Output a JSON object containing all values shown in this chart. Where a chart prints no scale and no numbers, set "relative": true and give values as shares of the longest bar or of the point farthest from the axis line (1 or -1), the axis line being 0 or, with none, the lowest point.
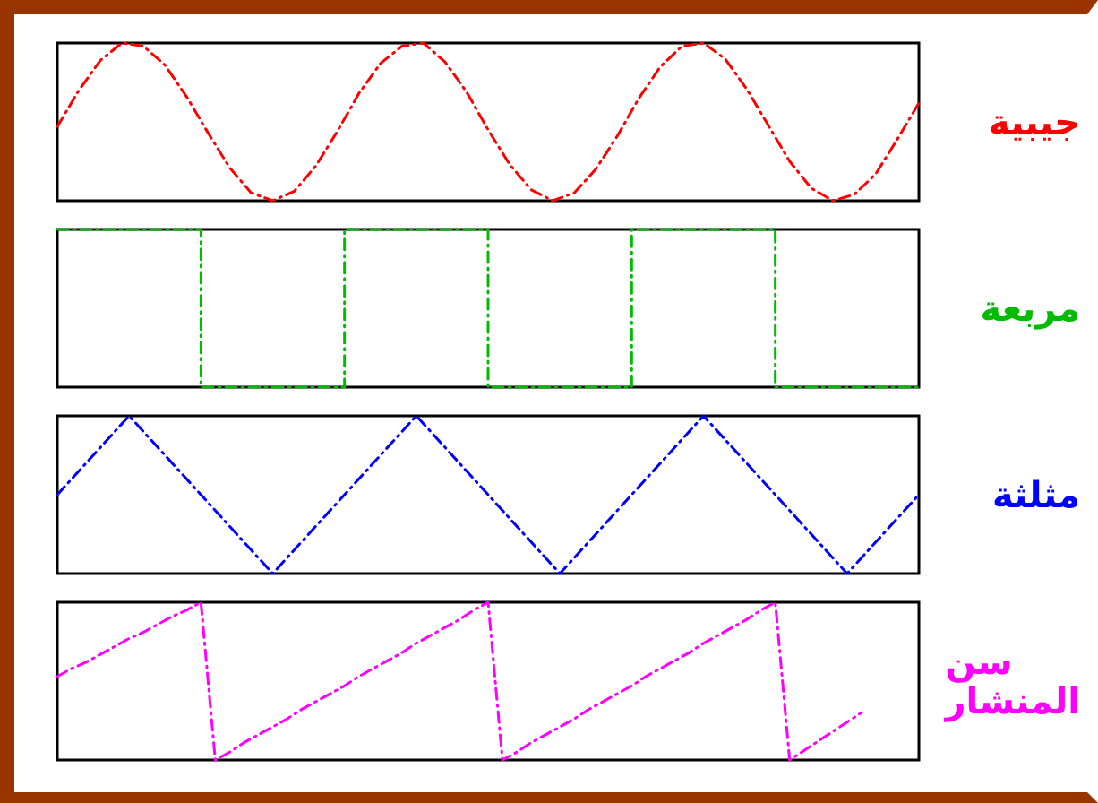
{
  "chart_data": [
    {
      "type": "line",
      "relative": true,
      "categories": [
        null,
        null,
        null,
        null,
        null,
        null,
        null,
        null,
        null,
        null,
        null,
        null,
        null,
        null,
        null,
        null,
        null,
        null,
        null,
        null,
        null,
        null,
        null,
        null,
        null,
        null,
        null,
        null,
        null,
        null,
        null,
        null,
        null,
        null,
        null,
        null,
        null,
        null,
        null,
        null,
        null
      ],
      "legend": false,
      "line_style": "dashed",
      "series": [
        {
          "name": "جيبية",
          "color": "#ff0000",
          "values": [
            0.47,
            0.7,
            0.89,
            1,
            0.98,
            0.86,
            0.66,
            0.43,
            0.21,
            0.05,
            0,
            0.06,
            0.22,
            0.44,
            0.68,
            0.87,
            0.98,
            1,
            0.88,
            0.69,
            0.45,
            0.23,
            0.07,
            0,
            0.05,
            0.2,
            0.41,
            0.65,
            0.85,
            0.98,
            1,
            0.9,
            0.71,
            0.48,
            0.25,
            0.08,
            0,
            0.04,
            0.17,
            0.39,
            0.62
          ]
        }
      ]
    },
    {
      "type": "step",
      "relative": true,
      "categories": [
        null,
        null,
        null,
        null,
        null,
        null,
        null
      ],
      "legend": false,
      "line_style": "dashed",
      "series": [
        {
          "name": "مربعة",
          "color": "#00bb00",
          "values": [
            1,
            0,
            1,
            0,
            1,
            0,
            0
          ]
        }
      ]
    },
    {
      "type": "line",
      "relative": true,
      "categories": [
        null,
        null,
        null,
        null,
        null,
        null,
        null,
        null,
        null,
        null,
        null,
        null,
        null
      ],
      "legend": false,
      "line_style": "dashed",
      "series": [
        {
          "name": "مثلثة",
          "color": "#0000ff",
          "values": [
            0.5,
            1,
            0.5,
            0,
            0.5,
            1,
            0.5,
            0,
            0.5,
            1,
            0.5,
            0,
            0.5
          ]
        }
      ]
    },
    {
      "type": "line",
      "relative": true,
      "categories": [
        null,
        null,
        null,
        null,
        null,
        null,
        null,
        null,
        null,
        null,
        null,
        null,
        null,
        null,
        null,
        null,
        null,
        null,
        null,
        null,
        null,
        null,
        null,
        null,
        null,
        null,
        null,
        null,
        null,
        null,
        null,
        null,
        null,
        null,
        null,
        null,
        null,
        null,
        null,
        null,
        null,
        null,
        null,
        null,
        null,
        null,
        null,
        null,
        null,
        null,
        null,
        null,
        null,
        null,
        null,
        null,
        null,
        null,
        null,
        null,
        null
      ],
      "legend": false,
      "line_style": "dashed",
      "series": [
        {
          "name": "سن المنشار",
          "color": "#ff00ff",
          "values": [
            0.53,
            0.58,
            0.62,
            0.67,
            0.72,
            0.77,
            0.81,
            0.86,
            0.91,
            0.95,
            1,
            0,
            0.05,
            0.11,
            0.16,
            0.21,
            0.26,
            0.32,
            0.37,
            0.42,
            0.47,
            0.53,
            0.58,
            0.63,
            0.68,
            0.74,
            0.79,
            0.84,
            0.89,
            0.95,
            1,
            0,
            0.05,
            0.11,
            0.16,
            0.21,
            0.26,
            0.32,
            0.37,
            0.42,
            0.47,
            0.53,
            0.58,
            0.63,
            0.68,
            0.74,
            0.79,
            0.84,
            0.89,
            0.95,
            1,
            0,
            0.06,
            0.12,
            0.18,
            0.24,
            0.3,
            null,
            null,
            null,
            null
          ]
        }
      ]
    }
  ]
}
